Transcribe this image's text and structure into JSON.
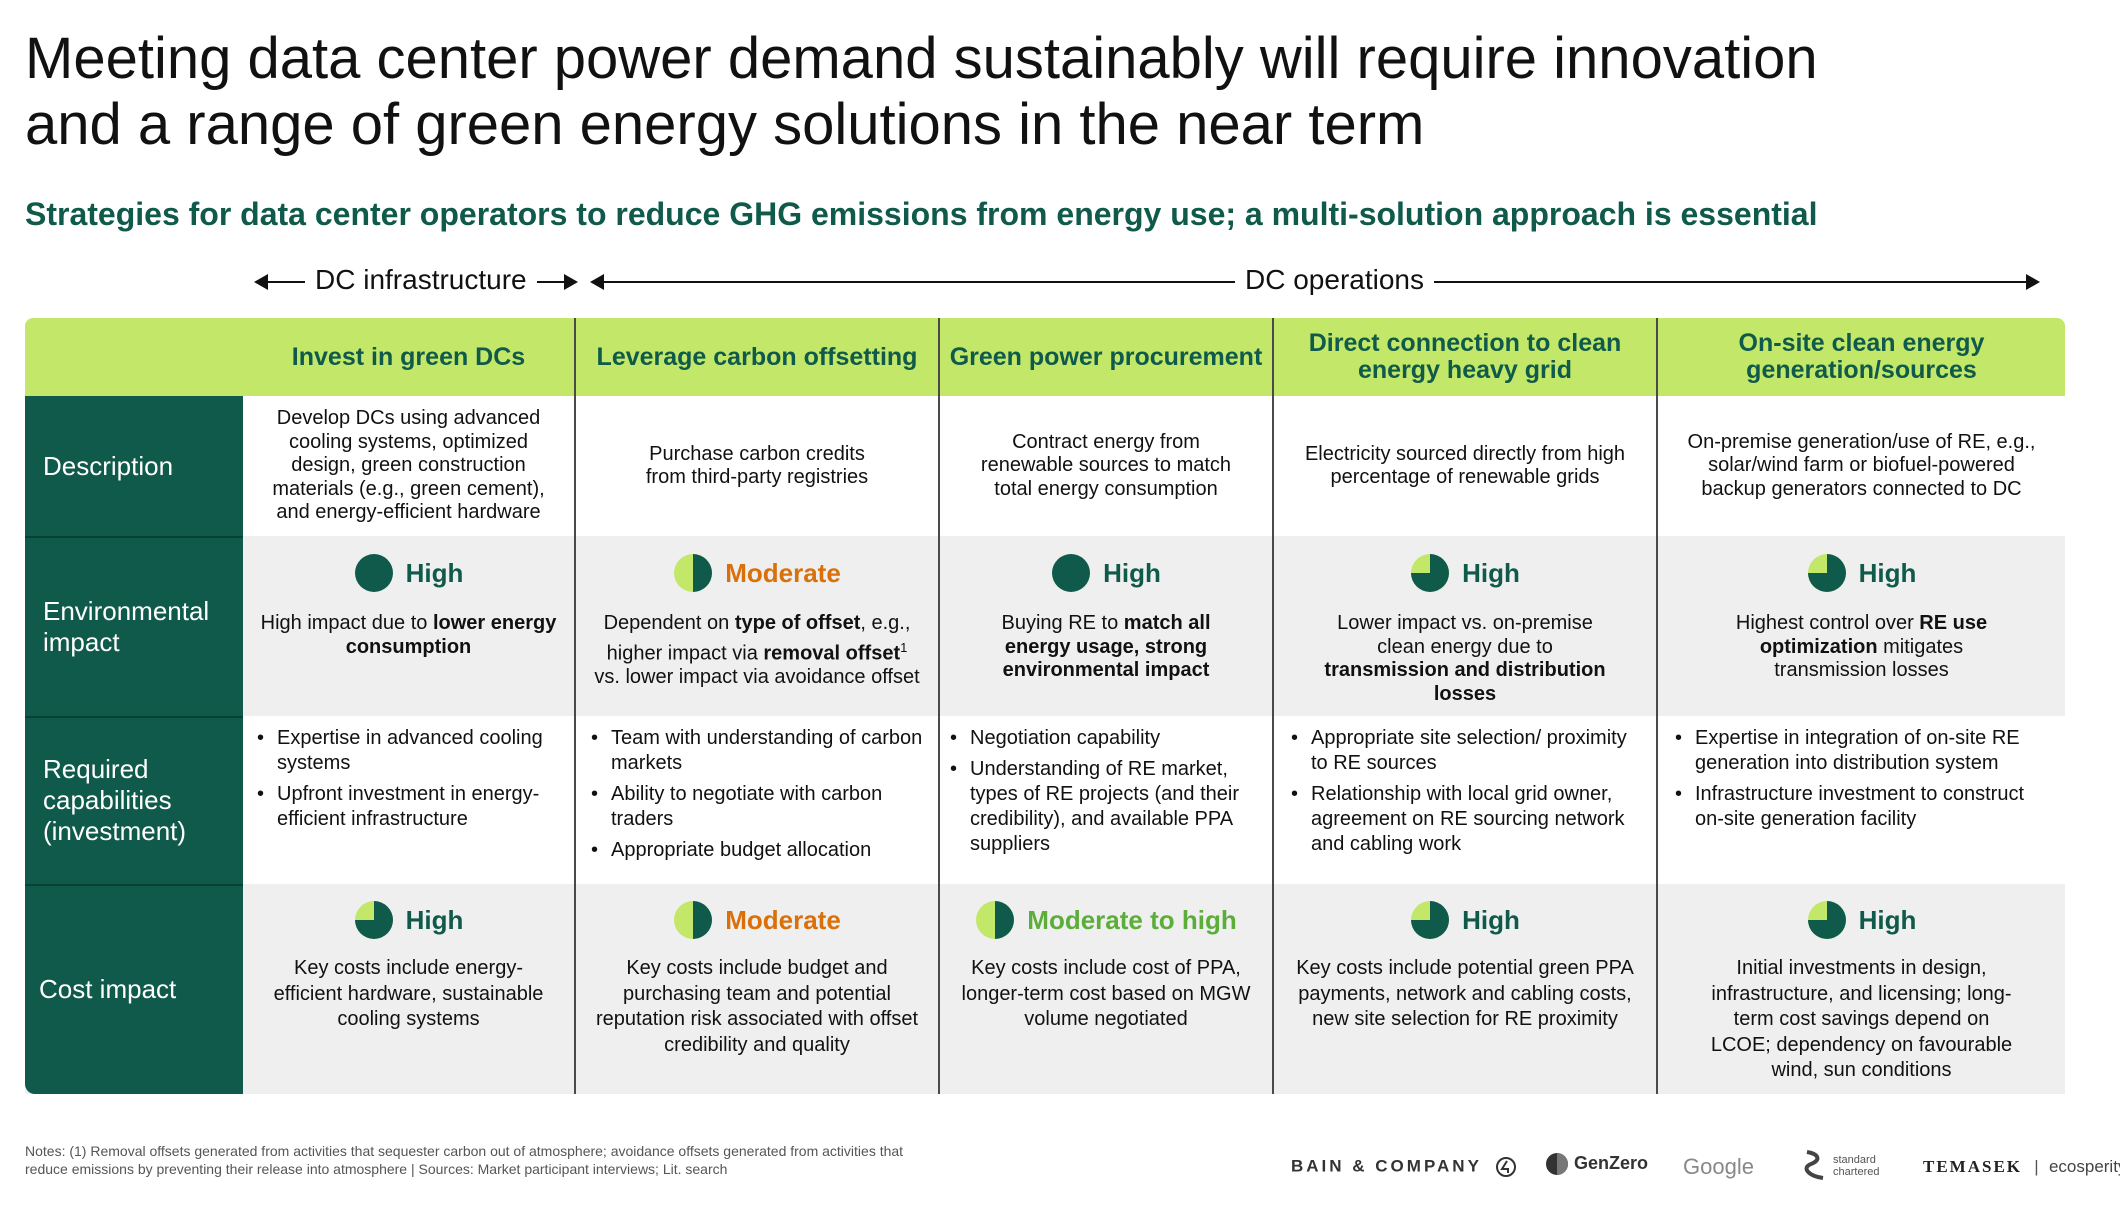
{
  "title": "Meeting data center power demand sustainably will require innovation and a range of green energy solutions in the near term",
  "subtitle": "Strategies for data center operators to reduce GHG emissions from energy use; a multi-solution approach is essential",
  "groups": {
    "infrastructure": "DC infrastructure",
    "operations": "DC operations"
  },
  "row_labels": {
    "description": "Description",
    "environmental": "Environmental impact",
    "capabilities": "Required capabilities (investment)",
    "cost": "Cost impact"
  },
  "columns": [
    {
      "header": "Invest in green DCs",
      "description": "Develop DCs using advanced cooling systems, optimized design, green construction materials (e.g., green cement), and energy-efficient hardware",
      "env_rating": "High",
      "env_fraction": 1.0,
      "env_text_pre": "High impact due to ",
      "env_text_bold": "lower energy consumption",
      "capabilities": [
        "Expertise in advanced cooling systems",
        "Upfront investment in energy-efficient infrastructure"
      ],
      "cost_rating": "High",
      "cost_fraction": 0.75,
      "cost_text": "Key costs include energy-efficient hardware, sustainable cooling systems"
    },
    {
      "header": "Leverage carbon offsetting",
      "description": "Purchase carbon credits from third-party registries",
      "env_rating": "Moderate",
      "env_fraction": 0.5,
      "env_text_a": "Dependent on ",
      "env_text_b": "type of offset",
      "env_text_c": ", e.g., higher impact via ",
      "env_text_d": "removal offset",
      "env_text_sup": "1",
      "env_text_e": " vs. lower impact via avoidance offset",
      "capabilities": [
        "Team with understanding of carbon markets",
        "Ability to negotiate with carbon traders",
        "Appropriate budget allocation"
      ],
      "cost_rating": "Moderate",
      "cost_fraction": 0.5,
      "cost_text": "Key costs include budget and purchasing team and potential reputation risk associated with offset credibility and quality"
    },
    {
      "header": "Green power procurement",
      "description": "Contract energy from renewable sources to match total energy consumption",
      "env_rating": "High",
      "env_fraction": 1.0,
      "env_text_pre": "Buying RE to ",
      "env_text_bold": "match all energy usage, strong environmental impact",
      "capabilities": [
        "Negotiation capability",
        "Understanding of RE market, types of RE projects (and their credibility), and available PPA suppliers"
      ],
      "cost_rating": "Moderate to high",
      "cost_fraction": 0.5,
      "cost_text": "Key costs include cost of PPA, longer-term cost based on MGW volume negotiated"
    },
    {
      "header": "Direct connection to clean energy heavy grid",
      "description": "Electricity sourced directly from high percentage of renewable grids",
      "env_rating": "High",
      "env_fraction": 0.75,
      "env_text_pre": "Lower impact vs. on-premise clean energy due to ",
      "env_text_bold": "transmission and distribution losses",
      "capabilities": [
        "Appropriate site selection/ proximity to RE sources",
        "Relationship with local grid owner, agreement on RE sourcing network and cabling work"
      ],
      "cost_rating": "High",
      "cost_fraction": 0.75,
      "cost_text": "Key costs include potential green PPA payments, network and cabling costs, new site selection for RE proximity"
    },
    {
      "header": "On-site clean energy generation/sources",
      "description": "On-premise generation/use of RE, e.g., solar/wind farm or biofuel-powered backup generators connected to DC",
      "env_rating": "High",
      "env_fraction": 0.75,
      "env_text_pre": "Highest control over ",
      "env_text_bold": "RE use optimization",
      "env_text_post": " mitigates transmission losses",
      "capabilities": [
        "Expertise in integration of on-site RE generation into distribution system",
        "Infrastructure investment to construct on-site generation facility"
      ],
      "cost_rating": "High",
      "cost_fraction": 0.75,
      "cost_text": "Initial investments in design, infrastructure, and licensing; long-term cost savings depend on LCOE; dependency on favourable wind, sun conditions"
    }
  ],
  "notes": "Notes: (1) Removal offsets generated from activities that sequester carbon out of atmosphere; avoidance offsets generated from activities that reduce emissions by preventing their release into atmosphere | Sources: Market participant interviews; Lit. search",
  "logos": {
    "bain": "BAIN & COMPANY",
    "genzero": "GenZero",
    "google": "Google",
    "sc_top": "standard",
    "sc_bottom": "chartered",
    "temasek": "TEMASEK",
    "ecosperity": "ecosperity"
  },
  "colors": {
    "dark_green": "#0f5a4a",
    "lime": "#c2e769",
    "moderate": "#d9700a",
    "moderate_high": "#5cae3a",
    "pie_light": "#c2e769"
  }
}
